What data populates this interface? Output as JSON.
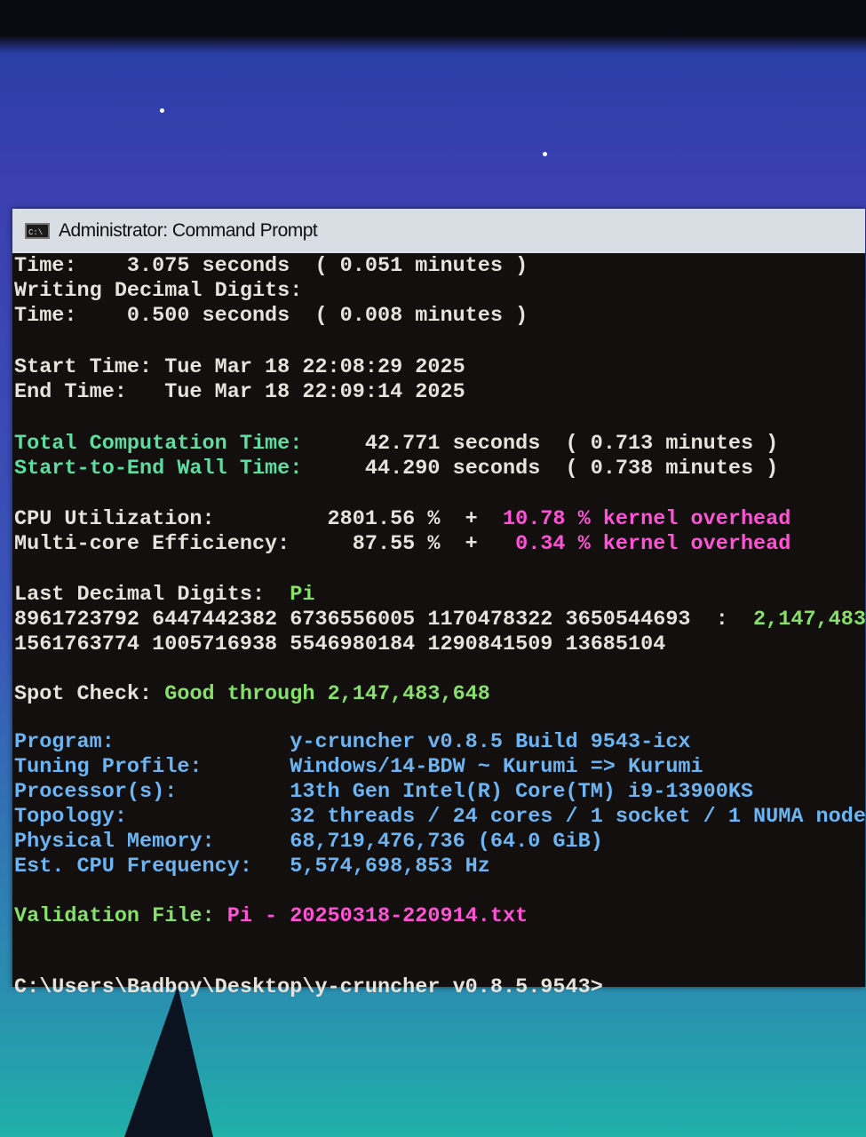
{
  "window": {
    "title": "Administrator: Command Prompt",
    "icon": "cmd-icon",
    "icon_text": "C:\\"
  },
  "colors": {
    "white": "#e6e2dc",
    "green": "#86e06a",
    "teal": "#5fdca0",
    "pink": "#ff52d6",
    "blue": "#6cb4f2"
  },
  "lines": [
    {
      "name": "time-line-1",
      "segments": [
        {
          "text": "Time:    3.075 seconds  ( 0.051 minutes )",
          "color": "white"
        }
      ]
    },
    {
      "name": "writing-decimal-digits",
      "segments": [
        {
          "text": "Writing Decimal Digits:",
          "color": "white"
        }
      ]
    },
    {
      "name": "time-line-2",
      "segments": [
        {
          "text": "Time:    0.500 seconds  ( 0.008 minutes )",
          "color": "white"
        }
      ]
    },
    {
      "name": "start-time",
      "segments": [
        {
          "text": "Start Time: Tue Mar 18 22:08:29 2025",
          "color": "white"
        }
      ]
    },
    {
      "name": "end-time",
      "segments": [
        {
          "text": "End Time:   Tue Mar 18 22:09:14 2025",
          "color": "white"
        }
      ]
    },
    {
      "name": "total-computation-time",
      "segments": [
        {
          "text": "Total Computation Time:",
          "color": "teal"
        },
        {
          "text": "     42.771 seconds  ( 0.713 minutes )",
          "color": "white"
        }
      ]
    },
    {
      "name": "wall-time",
      "segments": [
        {
          "text": "Start-to-End Wall Time:",
          "color": "teal"
        },
        {
          "text": "     44.290 seconds  ( 0.738 minutes )",
          "color": "white"
        }
      ]
    },
    {
      "name": "cpu-utilization",
      "segments": [
        {
          "text": "CPU Utilization:         2801.56 %  +  ",
          "color": "white"
        },
        {
          "text": "10.78 % kernel overhead",
          "color": "pink"
        }
      ]
    },
    {
      "name": "multi-core-efficiency",
      "segments": [
        {
          "text": "Multi-core Efficiency:     87.55 %  +   ",
          "color": "white"
        },
        {
          "text": "0.34 % kernel overhead",
          "color": "pink"
        }
      ]
    },
    {
      "name": "last-decimal-digits",
      "segments": [
        {
          "text": "Last Decimal Digits:  ",
          "color": "white"
        },
        {
          "text": "Pi",
          "color": "green"
        }
      ]
    },
    {
      "name": "digits-row-1",
      "segments": [
        {
          "text": "8961723792 6447442382 6736556005 1170478322 3650544693  :  ",
          "color": "white"
        },
        {
          "text": "2,147,483",
          "color": "green"
        }
      ]
    },
    {
      "name": "digits-row-2",
      "segments": [
        {
          "text": "1561763774 1005716938 5546980184 1290841509 13685104",
          "color": "white"
        }
      ]
    },
    {
      "name": "spot-check",
      "segments": [
        {
          "text": "Spot Check: ",
          "color": "white"
        },
        {
          "text": "Good through 2,147,483,648",
          "color": "green"
        }
      ]
    },
    {
      "name": "program",
      "segments": [
        {
          "text": "Program:              y-cruncher v0.8.5 Build 9543-icx",
          "color": "blue"
        }
      ]
    },
    {
      "name": "tuning-profile",
      "segments": [
        {
          "text": "Tuning Profile:       Windows/14-BDW ~ Kurumi => Kurumi",
          "color": "blue"
        }
      ]
    },
    {
      "name": "processors",
      "segments": [
        {
          "text": "Processor(s):         13th Gen Intel(R) Core(TM) i9-13900KS",
          "color": "blue"
        }
      ]
    },
    {
      "name": "topology",
      "segments": [
        {
          "text": "Topology:             32 threads / 24 cores / 1 socket / 1 NUMA node",
          "color": "blue"
        }
      ]
    },
    {
      "name": "physical-memory",
      "segments": [
        {
          "text": "Physical Memory:      68,719,476,736 (64.0 GiB)",
          "color": "blue"
        }
      ]
    },
    {
      "name": "cpu-frequency",
      "segments": [
        {
          "text": "Est. CPU Frequency:   5,574,698,853 Hz",
          "color": "blue"
        }
      ]
    },
    {
      "name": "validation-file",
      "segments": [
        {
          "text": "Validation File: ",
          "color": "green"
        },
        {
          "text": "Pi - 20250318-220914.txt",
          "color": "pink"
        }
      ]
    },
    {
      "name": "command-prompt",
      "segments": [
        {
          "text": "C:\\Users\\Badboy\\Desktop\\y-cruncher v0.8.5.9543>",
          "color": "white"
        }
      ]
    }
  ]
}
